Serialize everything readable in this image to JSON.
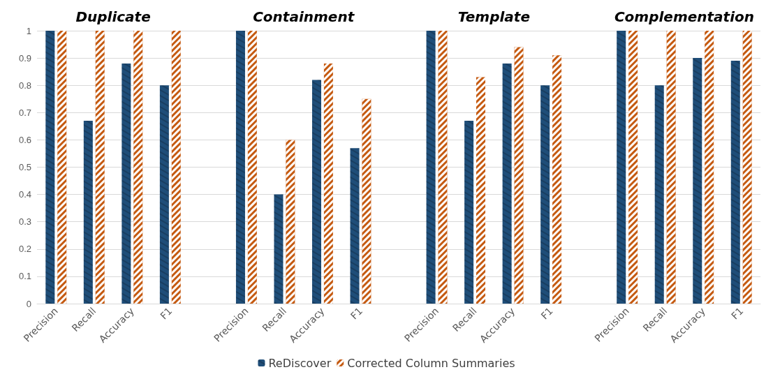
{
  "chart_data": {
    "type": "bar",
    "categories": [
      "Precision",
      "Recall",
      "Accuracy",
      "F1",
      null,
      "Precision",
      "Recall",
      "Accuracy",
      "F1",
      null,
      "Precision",
      "Recall",
      "Accuracy",
      "F1",
      null,
      "Precision",
      "Recall",
      "Accuracy",
      "F1"
    ],
    "annotations": [
      "Duplicate",
      "Containment",
      "Template",
      "Complementation"
    ],
    "series": [
      {
        "name": "ReDiscover",
        "color": "#1f4e79",
        "values": [
          1,
          0.67,
          0.88,
          0.8,
          null,
          1,
          0.4,
          0.82,
          0.57,
          null,
          1,
          0.67,
          0.88,
          0.8,
          null,
          1,
          0.8,
          0.9,
          0.89
        ]
      },
      {
        "name": "Corrected Column Summaries",
        "color": "#c55a11",
        "values": [
          1,
          1,
          1,
          1,
          null,
          1,
          0.6,
          0.88,
          0.75,
          null,
          1,
          0.83,
          0.94,
          0.91,
          null,
          1,
          1,
          1,
          1
        ]
      }
    ],
    "ylim": [
      0,
      1
    ],
    "yticks": [
      0,
      0.1,
      0.2,
      0.3,
      0.4,
      0.5,
      0.6,
      0.7,
      0.8,
      0.9,
      1
    ],
    "grid": "y",
    "legend": "bottom"
  }
}
